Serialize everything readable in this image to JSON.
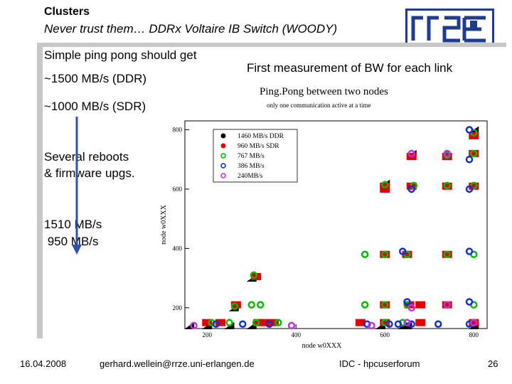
{
  "slide": {
    "title_line1": "Clusters",
    "title_line2": "Never trust them… DDRx Voltaire IB Switch (WOODY)",
    "left_text": {
      "line1": "Simple ping pong should get",
      "line2": "~1500 MB/s (DDR)",
      "line3": "~1000 MB/s (SDR)",
      "line4": "Several reboots",
      "line5": "& firmware upgs.",
      "line6": "1510 MB/s",
      "line7": " 950 MB/s"
    },
    "right_caption": "First measurement of BW for each link",
    "footer": {
      "date": "16.04.2008",
      "email": "gerhard.wellein@rrze.uni-erlangen.de",
      "event": "IDC - hpcuserforum",
      "page": "26"
    }
  },
  "chart_data": {
    "type": "scatter",
    "title": "Ping.Pong between two nodes",
    "subtitle": "only one communication active at a time",
    "xlabel": "node w0XXX",
    "ylabel": "node w0XXX",
    "xlim": [
      150,
      830
    ],
    "ylim": [
      130,
      830
    ],
    "xticks": [
      200,
      400,
      600,
      800
    ],
    "yticks": [
      200,
      400,
      600,
      800
    ],
    "legend_position": "top-left",
    "series": [
      {
        "name": "1460 MB/s DDR",
        "color": "#000000",
        "marker": "filled-circle",
        "points": [
          [
            160,
            140
          ],
          [
            200,
            140
          ],
          [
            250,
            140
          ],
          [
            300,
            140
          ],
          [
            590,
            140
          ],
          [
            640,
            140
          ],
          [
            650,
            140
          ],
          [
            800,
            140
          ],
          [
            260,
            200
          ],
          [
            300,
            300
          ],
          [
            600,
            620
          ],
          [
            660,
            720
          ],
          [
            800,
            800
          ]
        ]
      },
      {
        "name": "960 MB/s SDR",
        "color": "#e00000",
        "marker": "filled-square",
        "points": [
          [
            200,
            150
          ],
          [
            230,
            150
          ],
          [
            315,
            150
          ],
          [
            330,
            150
          ],
          [
            350,
            150
          ],
          [
            600,
            150
          ],
          [
            680,
            150
          ],
          [
            800,
            150
          ],
          [
            265,
            210
          ],
          [
            310,
            305
          ],
          [
            600,
            600
          ],
          [
            600,
            380
          ],
          [
            650,
            380
          ],
          [
            600,
            210
          ],
          [
            655,
            210
          ],
          [
            740,
            210
          ],
          [
            740,
            380
          ],
          [
            600,
            610
          ],
          [
            660,
            610
          ],
          [
            660,
            710
          ],
          [
            740,
            610
          ],
          [
            740,
            710
          ],
          [
            800,
            610
          ],
          [
            800,
            720
          ],
          [
            800,
            780
          ],
          [
            545,
            150
          ],
          [
            680,
            210
          ]
        ]
      },
      {
        "name": "767 MB/s",
        "color": "#00bb00",
        "marker": "open-circle",
        "points": [
          [
            210,
            150
          ],
          [
            250,
            150
          ],
          [
            310,
            150
          ],
          [
            360,
            150
          ],
          [
            600,
            150
          ],
          [
            640,
            150
          ],
          [
            800,
            150
          ],
          [
            262,
            205
          ],
          [
            300,
            210
          ],
          [
            320,
            210
          ],
          [
            555,
            210
          ],
          [
            600,
            210
          ],
          [
            650,
            210
          ],
          [
            740,
            210
          ],
          [
            800,
            210
          ],
          [
            305,
            310
          ],
          [
            555,
            380
          ],
          [
            600,
            380
          ],
          [
            650,
            380
          ],
          [
            740,
            380
          ],
          [
            800,
            380
          ],
          [
            600,
            615
          ],
          [
            665,
            612
          ],
          [
            740,
            612
          ],
          [
            740,
            715
          ],
          [
            800,
            612
          ],
          [
            800,
            720
          ],
          [
            800,
            790
          ]
        ]
      },
      {
        "name": "386 MB/s",
        "color": "#1030d0",
        "marker": "open-circle",
        "points": [
          [
            220,
            145
          ],
          [
            280,
            145
          ],
          [
            340,
            145
          ],
          [
            560,
            145
          ],
          [
            610,
            145
          ],
          [
            630,
            145
          ],
          [
            660,
            145
          ],
          [
            720,
            145
          ],
          [
            790,
            145
          ],
          [
            650,
            220
          ],
          [
            790,
            220
          ],
          [
            640,
            390
          ],
          [
            790,
            390
          ],
          [
            660,
            600
          ],
          [
            790,
            600
          ],
          [
            790,
            700
          ],
          [
            790,
            800
          ]
        ]
      },
      {
        "name": "240MB/s",
        "color": "#c030e0",
        "marker": "open-circle",
        "points": [
          [
            170,
            140
          ],
          [
            390,
            140
          ],
          [
            570,
            140
          ],
          [
            650,
            150
          ],
          [
            800,
            150
          ],
          [
            660,
            200
          ],
          [
            740,
            210
          ],
          [
            660,
            720
          ],
          [
            740,
            720
          ]
        ]
      }
    ]
  }
}
